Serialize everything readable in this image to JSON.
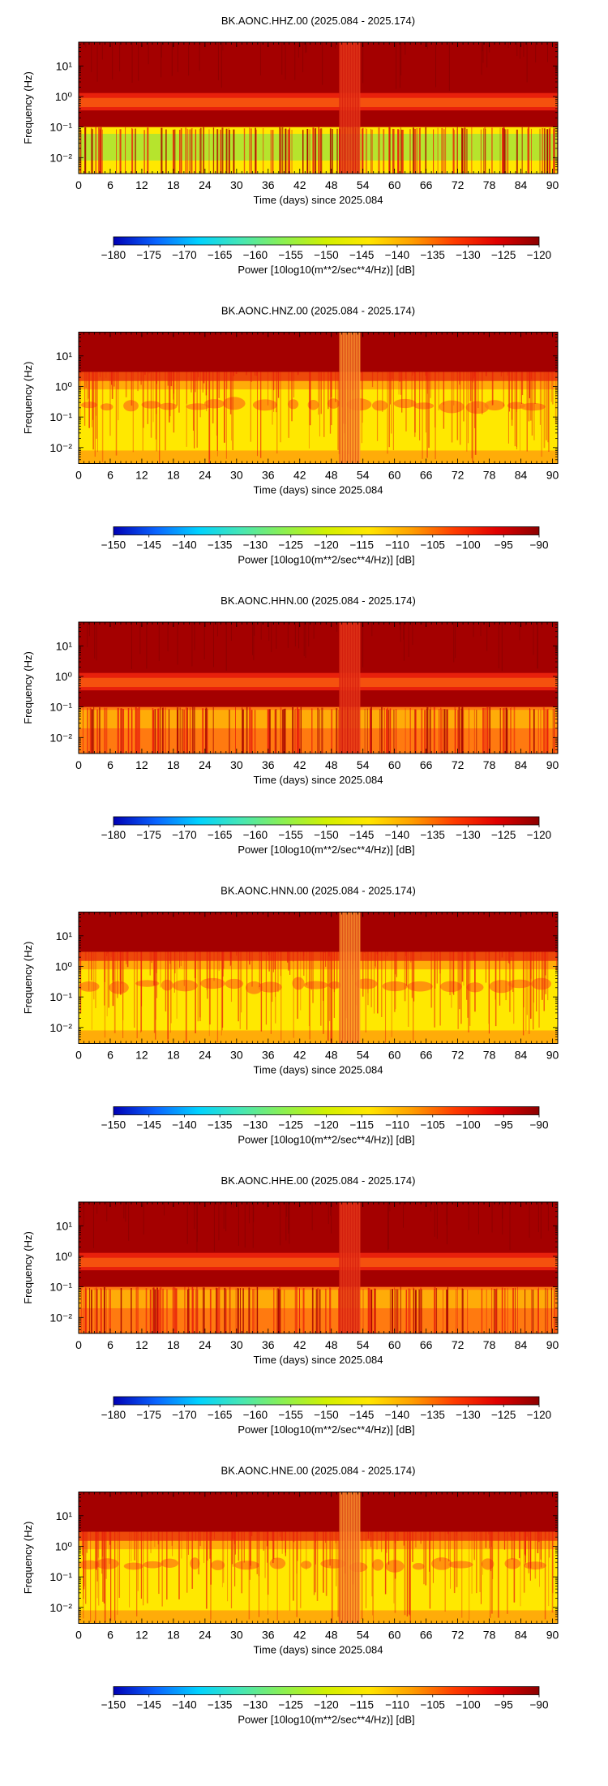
{
  "colors": {
    "background": "#ffffff",
    "spectrogram_dark_red": "#a40000",
    "spectrogram_red": "#e8200c",
    "spectrogram_orange": "#ff7a10",
    "spectrogram_yellow": "#ffe800",
    "spectrogram_green": "#7ae052",
    "colormap_stops": [
      "#0000b4",
      "#0a64ff",
      "#00d2ff",
      "#46e6b4",
      "#8cf050",
      "#d2f000",
      "#ffe600",
      "#ffa000",
      "#ff3c00",
      "#e00000",
      "#8c0000"
    ]
  },
  "chart_data": [
    {
      "type": "heatmap",
      "title": "BK.AONC.HHZ.00 (2025.084 - 2025.174)",
      "xlabel": "Time (days) since 2025.084",
      "ylabel": "Frequency (Hz)",
      "x_ticks": [
        "0",
        "6",
        "12",
        "18",
        "24",
        "30",
        "36",
        "42",
        "48",
        "54",
        "60",
        "66",
        "72",
        "78",
        "84",
        "90"
      ],
      "y_ticks": [
        "10⁻²",
        "10⁻¹",
        "10⁰",
        "10¹"
      ],
      "y_scale": "log",
      "xlim": [
        0,
        91
      ],
      "ylim": [
        0.003,
        60
      ],
      "gap_days": [
        49.5,
        53.5
      ],
      "colorbar": {
        "label": "Power [10log10(m**2/sec**4/Hz)] [dB]",
        "ticks": [
          "−180",
          "−175",
          "−170",
          "−165",
          "−160",
          "−155",
          "−150",
          "−145",
          "−140",
          "−135",
          "−130",
          "−125",
          "−120"
        ],
        "range": [
          -180,
          -120
        ]
      },
      "bands": [
        {
          "fmin": 0.1,
          "fmax": 60,
          "color": "#a40000",
          "description": "high power"
        },
        {
          "fmin": 0.35,
          "fmax": 1.3,
          "color": "#e8200c",
          "description": "microseism band"
        },
        {
          "fmin": 0.003,
          "fmax": 0.1,
          "color": "#ffe800",
          "description": "long period"
        }
      ]
    },
    {
      "type": "heatmap",
      "title": "BK.AONC.HNZ.00 (2025.084 - 2025.174)",
      "xlabel": "Time (days) since 2025.084",
      "ylabel": "Frequency (Hz)",
      "x_ticks": [
        "0",
        "6",
        "12",
        "18",
        "24",
        "30",
        "36",
        "42",
        "48",
        "54",
        "60",
        "66",
        "72",
        "78",
        "84",
        "90"
      ],
      "y_ticks": [
        "10⁻²",
        "10⁻¹",
        "10⁰",
        "10¹"
      ],
      "y_scale": "log",
      "xlim": [
        0,
        91
      ],
      "ylim": [
        0.003,
        60
      ],
      "gap_days": [
        49.5,
        53.5
      ],
      "colorbar": {
        "label": "Power [10log10(m**2/sec**4/Hz)] [dB]",
        "ticks": [
          "−150",
          "−145",
          "−140",
          "−135",
          "−130",
          "−125",
          "−120",
          "−115",
          "−110",
          "−105",
          "−100",
          "−95",
          "−90"
        ],
        "range": [
          -150,
          -90
        ]
      },
      "bands": [
        {
          "fmin": 3,
          "fmax": 60,
          "color": "#a40000",
          "description": "high frequency"
        },
        {
          "fmin": 0.003,
          "fmax": 3,
          "color": "#ffe800",
          "description": "yellow background"
        },
        {
          "fmin": 0.12,
          "fmax": 0.3,
          "color": "#ff7a10",
          "description": "microseism blobs"
        }
      ]
    },
    {
      "type": "heatmap",
      "title": "BK.AONC.HHN.00 (2025.084 - 2025.174)",
      "xlabel": "Time (days) since 2025.084",
      "ylabel": "Frequency (Hz)",
      "x_ticks": [
        "0",
        "6",
        "12",
        "18",
        "24",
        "30",
        "36",
        "42",
        "48",
        "54",
        "60",
        "66",
        "72",
        "78",
        "84",
        "90"
      ],
      "y_ticks": [
        "10⁻²",
        "10⁻¹",
        "10⁰",
        "10¹"
      ],
      "y_scale": "log",
      "xlim": [
        0,
        91
      ],
      "ylim": [
        0.003,
        60
      ],
      "gap_days": [
        49.5,
        53.5
      ],
      "colorbar": {
        "label": "Power [10log10(m**2/sec**4/Hz)] [dB]",
        "ticks": [
          "−180",
          "−175",
          "−170",
          "−165",
          "−160",
          "−155",
          "−150",
          "−145",
          "−140",
          "−135",
          "−130",
          "−125",
          "−120"
        ],
        "range": [
          -180,
          -120
        ]
      },
      "bands": [
        {
          "fmin": 0.1,
          "fmax": 60,
          "color": "#a40000",
          "description": "high power"
        },
        {
          "fmin": 0.35,
          "fmax": 1.3,
          "color": "#e8200c",
          "description": "microseism band"
        },
        {
          "fmin": 0.003,
          "fmax": 0.1,
          "color": "#ff7a10",
          "description": "long period"
        }
      ]
    },
    {
      "type": "heatmap",
      "title": "BK.AONC.HNN.00 (2025.084 - 2025.174)",
      "xlabel": "Time (days) since 2025.084",
      "ylabel": "Frequency (Hz)",
      "x_ticks": [
        "0",
        "6",
        "12",
        "18",
        "24",
        "30",
        "36",
        "42",
        "48",
        "54",
        "60",
        "66",
        "72",
        "78",
        "84",
        "90"
      ],
      "y_ticks": [
        "10⁻²",
        "10⁻¹",
        "10⁰",
        "10¹"
      ],
      "y_scale": "log",
      "xlim": [
        0,
        91
      ],
      "ylim": [
        0.003,
        60
      ],
      "gap_days": [
        49.5,
        53.5
      ],
      "colorbar": {
        "label": "Power [10log10(m**2/sec**4/Hz)] [dB]",
        "ticks": [
          "−150",
          "−145",
          "−140",
          "−135",
          "−130",
          "−125",
          "−120",
          "−115",
          "−110",
          "−105",
          "−100",
          "−95",
          "−90"
        ],
        "range": [
          -150,
          -90
        ]
      },
      "bands": [
        {
          "fmin": 3,
          "fmax": 60,
          "color": "#a40000",
          "description": "high frequency"
        },
        {
          "fmin": 0.003,
          "fmax": 3,
          "color": "#ffe800",
          "description": "yellow background"
        },
        {
          "fmin": 0.12,
          "fmax": 0.3,
          "color": "#ff7a10",
          "description": "microseism blobs"
        }
      ]
    },
    {
      "type": "heatmap",
      "title": "BK.AONC.HHE.00 (2025.084 - 2025.174)",
      "xlabel": "Time (days) since 2025.084",
      "ylabel": "Frequency (Hz)",
      "x_ticks": [
        "0",
        "6",
        "12",
        "18",
        "24",
        "30",
        "36",
        "42",
        "48",
        "54",
        "60",
        "66",
        "72",
        "78",
        "84",
        "90"
      ],
      "y_ticks": [
        "10⁻²",
        "10⁻¹",
        "10⁰",
        "10¹"
      ],
      "y_scale": "log",
      "xlim": [
        0,
        91
      ],
      "ylim": [
        0.003,
        60
      ],
      "gap_days": [
        49.5,
        53.5
      ],
      "colorbar": {
        "label": "Power [10log10(m**2/sec**4/Hz)] [dB]",
        "ticks": [
          "−180",
          "−175",
          "−170",
          "−165",
          "−160",
          "−155",
          "−150",
          "−145",
          "−140",
          "−135",
          "−130",
          "−125",
          "−120"
        ],
        "range": [
          -180,
          -120
        ]
      },
      "bands": [
        {
          "fmin": 0.1,
          "fmax": 60,
          "color": "#a40000",
          "description": "high power"
        },
        {
          "fmin": 0.35,
          "fmax": 1.3,
          "color": "#e8200c",
          "description": "microseism band"
        },
        {
          "fmin": 0.003,
          "fmax": 0.1,
          "color": "#ff7a10",
          "description": "long period"
        }
      ]
    },
    {
      "type": "heatmap",
      "title": "BK.AONC.HNE.00 (2025.084 - 2025.174)",
      "xlabel": "Time (days) since 2025.084",
      "ylabel": "Frequency (Hz)",
      "x_ticks": [
        "0",
        "6",
        "12",
        "18",
        "24",
        "30",
        "36",
        "42",
        "48",
        "54",
        "60",
        "66",
        "72",
        "78",
        "84",
        "90"
      ],
      "y_ticks": [
        "10⁻²",
        "10⁻¹",
        "10⁰",
        "10¹"
      ],
      "y_scale": "log",
      "xlim": [
        0,
        91
      ],
      "ylim": [
        0.003,
        60
      ],
      "gap_days": [
        49.5,
        53.5
      ],
      "colorbar": {
        "label": "Power [10log10(m**2/sec**4/Hz)] [dB]",
        "ticks": [
          "−150",
          "−145",
          "−140",
          "−135",
          "−130",
          "−125",
          "−120",
          "−115",
          "−110",
          "−105",
          "−100",
          "−95",
          "−90"
        ],
        "range": [
          -150,
          -90
        ]
      },
      "bands": [
        {
          "fmin": 3,
          "fmax": 60,
          "color": "#a40000",
          "description": "high frequency"
        },
        {
          "fmin": 0.003,
          "fmax": 3,
          "color": "#ffe800",
          "description": "yellow background"
        },
        {
          "fmin": 0.12,
          "fmax": 0.3,
          "color": "#ff7a10",
          "description": "microseism blobs"
        }
      ]
    }
  ]
}
